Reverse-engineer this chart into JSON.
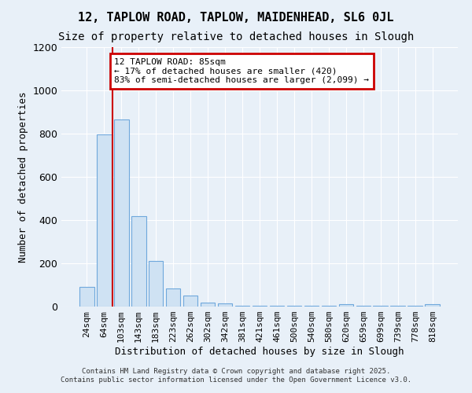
{
  "title": "12, TAPLOW ROAD, TAPLOW, MAIDENHEAD, SL6 0JL",
  "subtitle": "Size of property relative to detached houses in Slough",
  "xlabel": "Distribution of detached houses by size in Slough",
  "ylabel": "Number of detached properties",
  "categories": [
    "24sqm",
    "64sqm",
    "103sqm",
    "143sqm",
    "183sqm",
    "223sqm",
    "262sqm",
    "302sqm",
    "342sqm",
    "381sqm",
    "421sqm",
    "461sqm",
    "500sqm",
    "540sqm",
    "580sqm",
    "620sqm",
    "659sqm",
    "699sqm",
    "739sqm",
    "778sqm",
    "818sqm"
  ],
  "values": [
    90,
    795,
    865,
    420,
    210,
    85,
    50,
    20,
    15,
    5,
    5,
    5,
    2,
    2,
    2,
    10,
    2,
    2,
    2,
    2,
    10
  ],
  "bar_color": "#cfe2f3",
  "bar_edge_color": "#6fa8dc",
  "vline_x": 1.5,
  "vline_color": "#cc0000",
  "annotation_line1": "12 TAPLOW ROAD: 85sqm",
  "annotation_line2": "← 17% of detached houses are smaller (420)",
  "annotation_line3": "83% of semi-detached houses are larger (2,099) →",
  "annotation_box_color": "#cc0000",
  "annotation_bg_color": "white",
  "ylim": [
    0,
    1200
  ],
  "yticks": [
    0,
    200,
    400,
    600,
    800,
    1000,
    1200
  ],
  "background_color": "#e8f0f8",
  "title_fontsize": 11,
  "subtitle_fontsize": 10,
  "axis_label_fontsize": 9,
  "tick_fontsize": 8,
  "annotation_fontsize": 8,
  "footer_line1": "Contains HM Land Registry data © Crown copyright and database right 2025.",
  "footer_line2": "Contains public sector information licensed under the Open Government Licence v3.0."
}
